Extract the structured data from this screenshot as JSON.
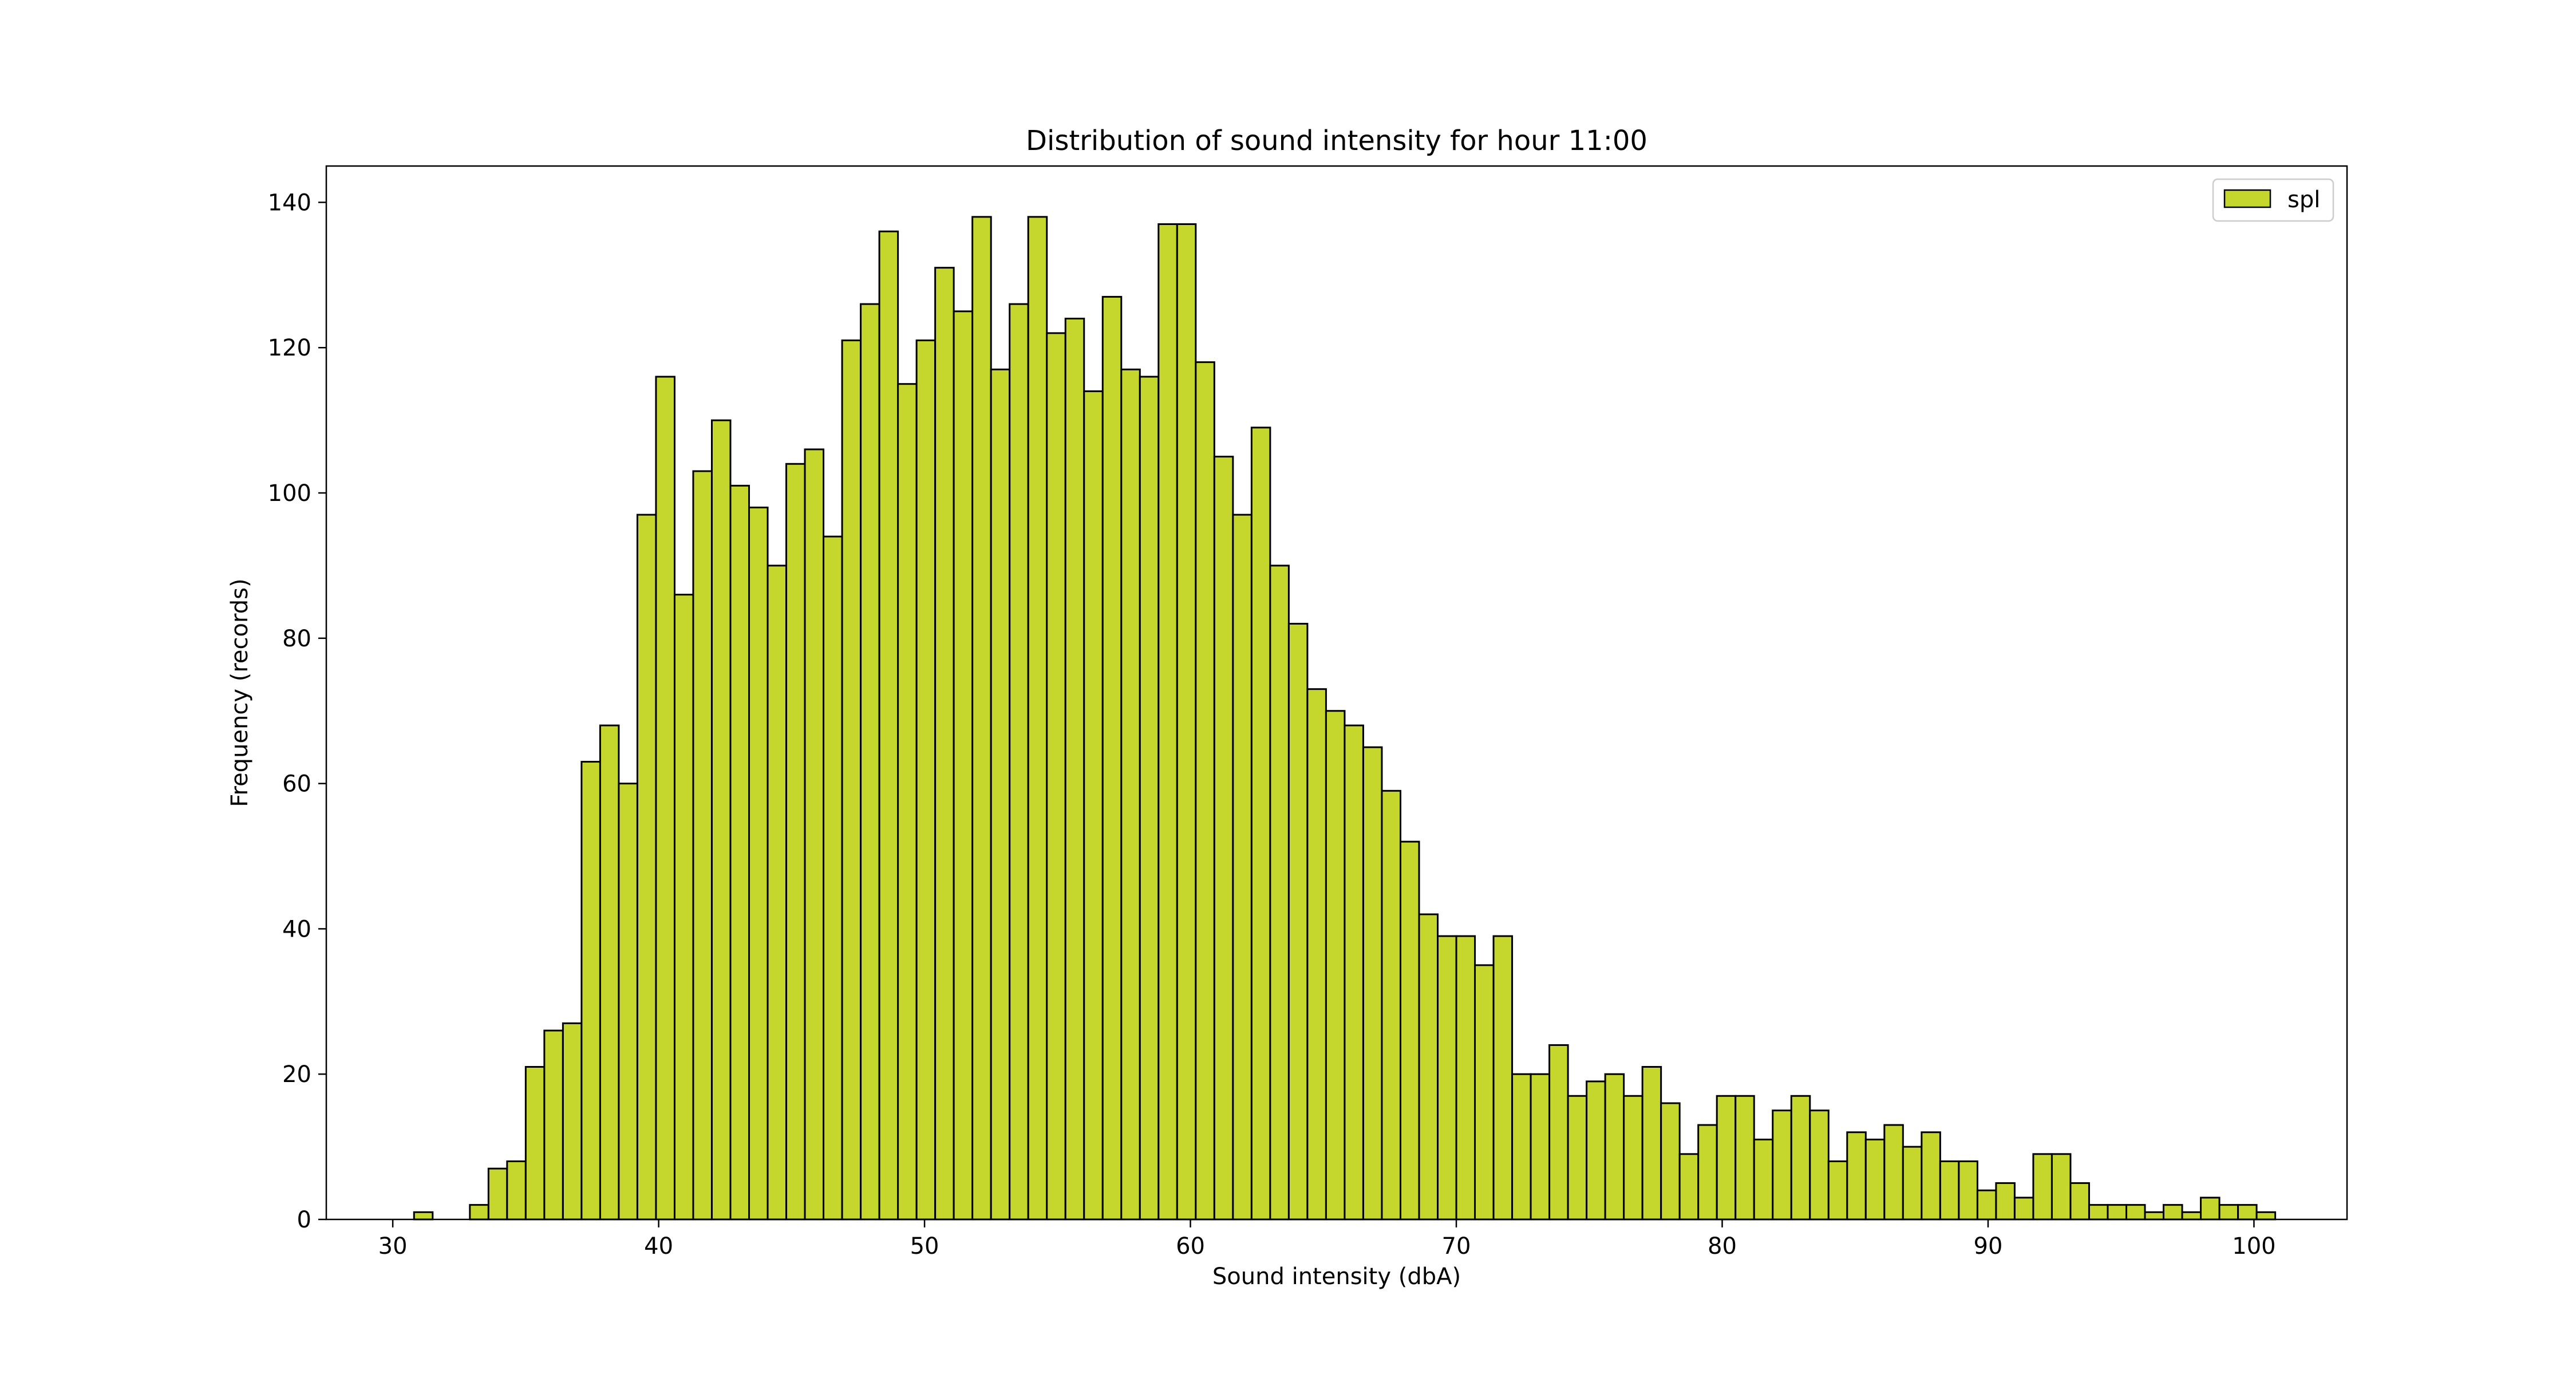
{
  "chart_data": {
    "type": "bar",
    "title": "Distribution of sound intensity for hour 11:00",
    "xlabel": "Sound intensity (dbA)",
    "ylabel": "Frequency (records)",
    "xlim": [
      27.5,
      103.5
    ],
    "ylim": [
      0,
      145
    ],
    "xticks": [
      30,
      40,
      50,
      60,
      70,
      80,
      90,
      100
    ],
    "yticks": [
      0,
      20,
      40,
      60,
      80,
      100,
      120,
      140
    ],
    "grid": false,
    "legend_position": "top-right",
    "bar_color": "#c5d72c",
    "edge_color": "#000000",
    "series": [
      {
        "name": "spl",
        "bin_start": 30.1,
        "bin_width": 0.7,
        "values": [
          0,
          1,
          0,
          0,
          2,
          7,
          8,
          21,
          26,
          27,
          63,
          68,
          60,
          97,
          116,
          86,
          103,
          110,
          101,
          98,
          90,
          104,
          106,
          94,
          121,
          126,
          136,
          115,
          121,
          131,
          125,
          138,
          117,
          126,
          138,
          122,
          124,
          114,
          127,
          117,
          116,
          137,
          137,
          118,
          105,
          97,
          109,
          90,
          82,
          73,
          70,
          68,
          65,
          59,
          52,
          42,
          39,
          39,
          35,
          39,
          20,
          20,
          24,
          17,
          19,
          20,
          17,
          21,
          16,
          9,
          13,
          17,
          17,
          11,
          15,
          17,
          15,
          8,
          12,
          11,
          13,
          10,
          12,
          8,
          8,
          4,
          5,
          3,
          9,
          9,
          5,
          2,
          2,
          2,
          1,
          2,
          1,
          3,
          2,
          2,
          1
        ]
      }
    ]
  }
}
